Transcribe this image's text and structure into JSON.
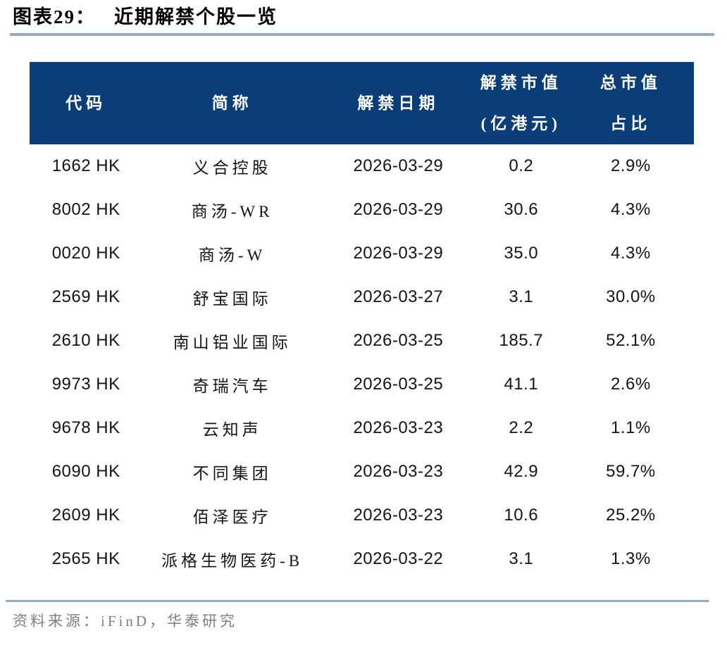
{
  "figure": {
    "label": "图表29：",
    "title": "近期解禁个股一览"
  },
  "chart_data": {
    "type": "table",
    "title": "近期解禁个股一览",
    "headers": [
      {
        "line1": "代码"
      },
      {
        "line1": "简称"
      },
      {
        "line1": "解禁日期"
      },
      {
        "line1": "解禁市值",
        "line2": "(亿港元)"
      },
      {
        "line1": "总市值",
        "line2": "占比"
      }
    ],
    "rows": [
      [
        "1662 HK",
        "义合控股",
        "2026-03-29",
        "0.2",
        "2.9%"
      ],
      [
        "8002 HK",
        "商汤-WR",
        "2026-03-29",
        "30.6",
        "4.3%"
      ],
      [
        "0020 HK",
        "商汤-W",
        "2026-03-29",
        "35.0",
        "4.3%"
      ],
      [
        "2569 HK",
        "舒宝国际",
        "2026-03-27",
        "3.1",
        "30.0%"
      ],
      [
        "2610 HK",
        "南山铝业国际",
        "2026-03-25",
        "185.7",
        "52.1%"
      ],
      [
        "9973 HK",
        "奇瑞汽车",
        "2026-03-25",
        "41.1",
        "2.6%"
      ],
      [
        "9678 HK",
        "云知声",
        "2026-03-23",
        "2.2",
        "1.1%"
      ],
      [
        "6090 HK",
        "不同集团",
        "2026-03-23",
        "42.9",
        "59.7%"
      ],
      [
        "2609 HK",
        "佰泽医疗",
        "2026-03-23",
        "10.6",
        "25.2%"
      ],
      [
        "2565 HK",
        "派格生物医药-B",
        "2026-03-22",
        "3.1",
        "1.3%"
      ]
    ]
  },
  "footer": {
    "source": "资料来源：iFinD，华泰研究"
  },
  "colors": {
    "header_bg": "#0b3d78",
    "rule": "#93a9c6",
    "footer_text": "#7f7f7f"
  }
}
